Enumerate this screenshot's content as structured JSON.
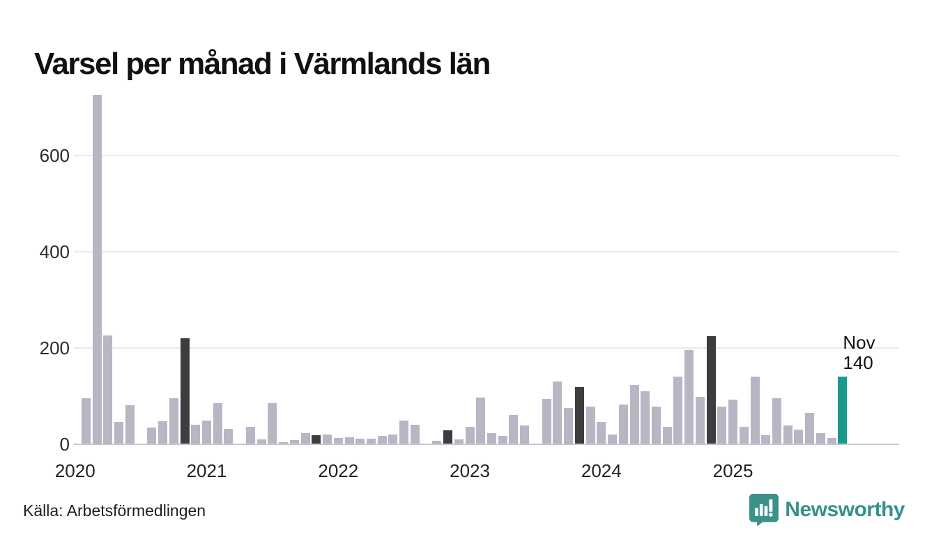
{
  "title": "Varsel per månad i Värmlands län",
  "source": "Källa: Arbetsförmedlingen",
  "branding": {
    "name": "Newsworthy",
    "icon": "newsworthy-speech-bubble-chart-icon"
  },
  "annotation": {
    "month": "Nov",
    "value": "140"
  },
  "colors": {
    "bar_default": "#b9b5c4",
    "bar_highlight_month": "#3d3d3f",
    "bar_current": "#17998b",
    "gridline": "#e9e9ee",
    "axis_line": "#c8c8d1",
    "text": "#111111",
    "brand_teal": "#37918b"
  },
  "chart_data": {
    "type": "bar",
    "title": "Varsel per månad i Värmlands län",
    "xlabel": "",
    "ylabel": "",
    "ylim": [
      0,
      740
    ],
    "yticks": [
      0,
      200,
      400,
      600
    ],
    "grid": "horizontal",
    "legend": "none",
    "x_year_labels": [
      "2020",
      "2021",
      "2022",
      "2023",
      "2024",
      "2025"
    ],
    "highlight_rule": "November bars dark gray; latest month (Nov 2025) teal with label",
    "months": [
      {
        "m": "Feb",
        "y": 2020,
        "v": 95
      },
      {
        "m": "Mar",
        "y": 2020,
        "v": 725
      },
      {
        "m": "Apr",
        "y": 2020,
        "v": 225
      },
      {
        "m": "May",
        "y": 2020,
        "v": 45
      },
      {
        "m": "Jun",
        "y": 2020,
        "v": 80
      },
      {
        "m": "Jul",
        "y": 2020,
        "v": 0
      },
      {
        "m": "Aug",
        "y": 2020,
        "v": 34
      },
      {
        "m": "Sep",
        "y": 2020,
        "v": 47
      },
      {
        "m": "Oct",
        "y": 2020,
        "v": 95
      },
      {
        "m": "Nov",
        "y": 2020,
        "v": 220
      },
      {
        "m": "Dec",
        "y": 2020,
        "v": 40
      },
      {
        "m": "Jan",
        "y": 2021,
        "v": 49
      },
      {
        "m": "Feb",
        "y": 2021,
        "v": 85
      },
      {
        "m": "Mar",
        "y": 2021,
        "v": 31
      },
      {
        "m": "Apr",
        "y": 2021,
        "v": 0
      },
      {
        "m": "May",
        "y": 2021,
        "v": 35
      },
      {
        "m": "Jun",
        "y": 2021,
        "v": 9
      },
      {
        "m": "Jul",
        "y": 2021,
        "v": 85
      },
      {
        "m": "Aug",
        "y": 2021,
        "v": 3
      },
      {
        "m": "Sep",
        "y": 2021,
        "v": 8
      },
      {
        "m": "Oct",
        "y": 2021,
        "v": 23
      },
      {
        "m": "Nov",
        "y": 2021,
        "v": 18
      },
      {
        "m": "Dec",
        "y": 2021,
        "v": 20
      },
      {
        "m": "Jan",
        "y": 2022,
        "v": 12
      },
      {
        "m": "Feb",
        "y": 2022,
        "v": 14
      },
      {
        "m": "Mar",
        "y": 2022,
        "v": 11
      },
      {
        "m": "Apr",
        "y": 2022,
        "v": 11
      },
      {
        "m": "May",
        "y": 2022,
        "v": 17
      },
      {
        "m": "Jun",
        "y": 2022,
        "v": 19
      },
      {
        "m": "Jul",
        "y": 2022,
        "v": 49
      },
      {
        "m": "Aug",
        "y": 2022,
        "v": 40
      },
      {
        "m": "Sep",
        "y": 2022,
        "v": 0
      },
      {
        "m": "Oct",
        "y": 2022,
        "v": 7
      },
      {
        "m": "Nov",
        "y": 2022,
        "v": 28
      },
      {
        "m": "Dec",
        "y": 2022,
        "v": 9
      },
      {
        "m": "Jan",
        "y": 2023,
        "v": 35
      },
      {
        "m": "Feb",
        "y": 2023,
        "v": 97
      },
      {
        "m": "Mar",
        "y": 2023,
        "v": 22
      },
      {
        "m": "Apr",
        "y": 2023,
        "v": 16
      },
      {
        "m": "May",
        "y": 2023,
        "v": 60
      },
      {
        "m": "Jun",
        "y": 2023,
        "v": 39
      },
      {
        "m": "Jul",
        "y": 2023,
        "v": 0
      },
      {
        "m": "Aug",
        "y": 2023,
        "v": 94
      },
      {
        "m": "Sep",
        "y": 2023,
        "v": 130
      },
      {
        "m": "Oct",
        "y": 2023,
        "v": 75
      },
      {
        "m": "Nov",
        "y": 2023,
        "v": 118
      },
      {
        "m": "Dec",
        "y": 2023,
        "v": 78
      },
      {
        "m": "Jan",
        "y": 2024,
        "v": 45
      },
      {
        "m": "Feb",
        "y": 2024,
        "v": 20
      },
      {
        "m": "Mar",
        "y": 2024,
        "v": 82
      },
      {
        "m": "Apr",
        "y": 2024,
        "v": 123
      },
      {
        "m": "May",
        "y": 2024,
        "v": 110
      },
      {
        "m": "Jun",
        "y": 2024,
        "v": 78
      },
      {
        "m": "Jul",
        "y": 2024,
        "v": 35
      },
      {
        "m": "Aug",
        "y": 2024,
        "v": 140
      },
      {
        "m": "Sep",
        "y": 2024,
        "v": 195
      },
      {
        "m": "Oct",
        "y": 2024,
        "v": 98
      },
      {
        "m": "Nov",
        "y": 2024,
        "v": 224
      },
      {
        "m": "Dec",
        "y": 2024,
        "v": 78
      },
      {
        "m": "Jan",
        "y": 2025,
        "v": 92
      },
      {
        "m": "Feb",
        "y": 2025,
        "v": 35
      },
      {
        "m": "Mar",
        "y": 2025,
        "v": 140
      },
      {
        "m": "Apr",
        "y": 2025,
        "v": 18
      },
      {
        "m": "May",
        "y": 2025,
        "v": 95
      },
      {
        "m": "Jun",
        "y": 2025,
        "v": 39
      },
      {
        "m": "Jul",
        "y": 2025,
        "v": 30
      },
      {
        "m": "Aug",
        "y": 2025,
        "v": 64
      },
      {
        "m": "Sep",
        "y": 2025,
        "v": 23
      },
      {
        "m": "Oct",
        "y": 2025,
        "v": 13
      },
      {
        "m": "Nov",
        "y": 2025,
        "v": 140
      }
    ]
  }
}
